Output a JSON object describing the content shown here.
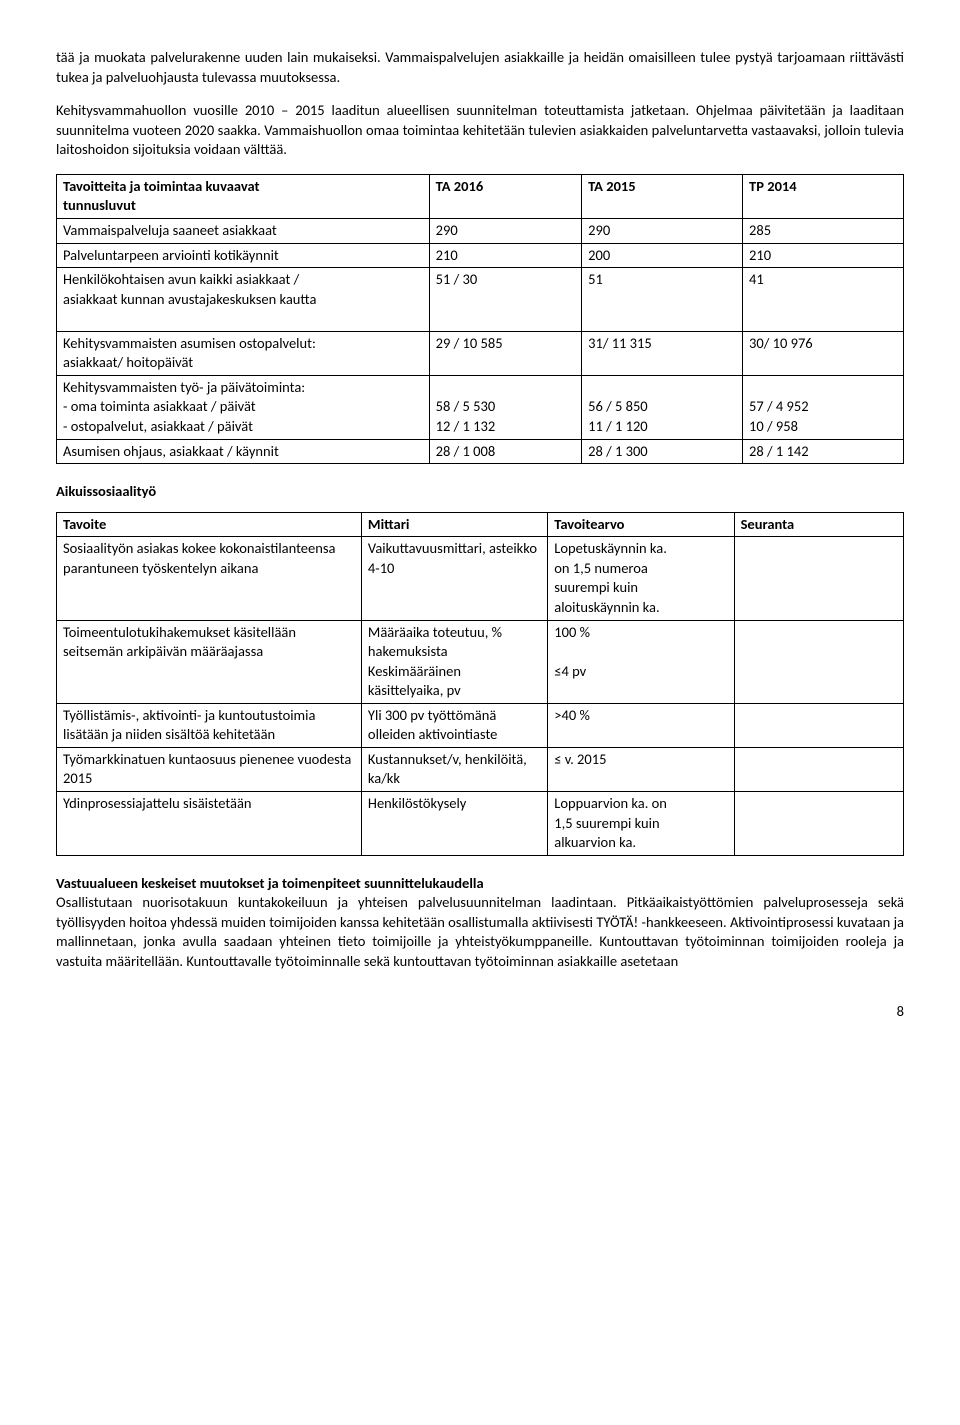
{
  "intro": {
    "p1": "tää ja muokata palvelurakenne uuden lain mukaiseksi. Vammaispalvelujen asiakkaille ja heidän omaisilleen tulee pystyä tarjoamaan riittävästi tukea ja palveluohjausta tulevassa muutoksessa.",
    "p2": "Kehitysvammahuollon vuosille 2010 – 2015 laaditun alueellisen suunnitelman toteuttamista jatketaan. Ohjelmaa päivitetään ja laaditaan suunnitelma vuoteen 2020 saakka. Vammaishuollon omaa toimintaa kehitetään tulevien asiakkaiden palveluntarvetta vastaavaksi, jolloin tulevia laitoshoidon sijoituksia voidaan välttää."
  },
  "table1": {
    "headers": {
      "col1a": "Tavoitteita ja toimintaa kuvaavat",
      "col1b": "tunnusluvut",
      "col2": "TA 2016",
      "col3": "TA 2015",
      "col4": "TP 2014"
    },
    "rows": [
      {
        "label": "Vammaispalveluja saaneet asiakkaat",
        "v1": "290",
        "v2": "290",
        "v3": "285"
      },
      {
        "label": "Palveluntarpeen arviointi kotikäynnit",
        "v1": "210",
        "v2": "200",
        "v3": "210"
      }
    ],
    "row_hk": {
      "label1": "Henkilökohtaisen avun kaikki asiakkaat /",
      "label2": "asiakkaat kunnan avustajakeskuksen kautta",
      "v1": "51 / 30",
      "v2": "51",
      "v3": "41"
    },
    "row_osto": {
      "label1": "Kehitysvammaisten asumisen ostopalvelut:",
      "label2": "asiakkaat/ hoitopäivät",
      "v1": "29 / 10 585",
      "v2": "31/ 11 315",
      "v3": "30/ 10 976"
    },
    "row_tyop": {
      "header": "Kehitysvammaisten työ- ja päivätoiminta:",
      "li1": "oma toiminta asiakkaat / päivät",
      "li2": "ostopalvelut, asiakkaat / päivät",
      "v1a": "58 / 5 530",
      "v1b": "12 / 1 132",
      "v2a": "56 / 5 850",
      "v2b": "11 / 1 120",
      "v3a": "57 / 4 952",
      "v3b": "10 / 958"
    },
    "row_asum": {
      "label": "Asumisen ohjaus, asiakkaat / käynnit",
      "v1": "28 / 1 008",
      "v2": "28 / 1 300",
      "v3": "28 / 1 142"
    }
  },
  "section2": {
    "title": "Aikuissosiaalityö"
  },
  "table2": {
    "headers": {
      "c1": "Tavoite",
      "c2": "Mittari",
      "c3": "Tavoitearvo",
      "c4": "Seuranta"
    },
    "r1": {
      "c1": "Sosiaalityön asiakas kokee kokonaistilanteensa parantuneen työskentelyn aikana",
      "c2": "Vaikuttavuusmittari, asteikko 4-10",
      "c3a": "Lopetuskäynnin ka.",
      "c3b": "on 1,5 numeroa",
      "c3c": "suurempi kuin",
      "c3d": "aloituskäynnin ka."
    },
    "r2": {
      "c1": "Toimeentulotukihakemukset käsitellään seitsemän arkipäivän määräajassa",
      "c2a": "Määräaika toteutuu, % hakemuksista",
      "c2b": "Keskimääräinen",
      "c2c": "käsittelyaika, pv",
      "c3a": "100 %",
      "c3b": "≤4 pv"
    },
    "r3": {
      "c1": "Työllistämis-, aktivointi- ja kuntoutustoimia lisätään ja niiden sisältöä kehitetään",
      "c2": "Yli 300 pv työttömänä olleiden aktivointiaste",
      "c3": ">40 %"
    },
    "r4": {
      "c1": "Työmarkkinatuen kuntaosuus pienenee vuodesta 2015",
      "c2": "Kustannukset/v, henkilöitä, ka/kk",
      "c3": "≤ v. 2015"
    },
    "r5": {
      "c1": "Ydinprosessiajattelu sisäistetään",
      "c2": "Henkilöstökysely",
      "c3a": "Loppuarvion ka. on",
      "c3b": "1,5 suurempi kuin",
      "c3c": "alkuarvion ka."
    }
  },
  "closing": {
    "heading": "Vastuualueen keskeiset muutokset ja toimenpiteet suunnittelukaudella",
    "body": "Osallistutaan nuorisotakuun kuntakokeiluun ja yhteisen palvelusuunnitelman laadintaan. Pitkäaikaistyöttömien palveluprosesseja sekä työllisyyden hoitoa yhdessä muiden toimijoiden kanssa kehitetään osallistumalla aktiivisesti TYÖTÄ! -hankkeeseen. Aktivointiprosessi kuvataan ja mallinnetaan, jonka avulla saadaan yhteinen tieto toimijoille ja yhteistyökumppaneille. Kuntouttavan työtoiminnan toimijoiden rooleja ja vastuita määritellään. Kuntouttavalle työtoiminnalle sekä kuntouttavan työtoiminnan asiakkaille asetetaan"
  },
  "pagenum": "8"
}
